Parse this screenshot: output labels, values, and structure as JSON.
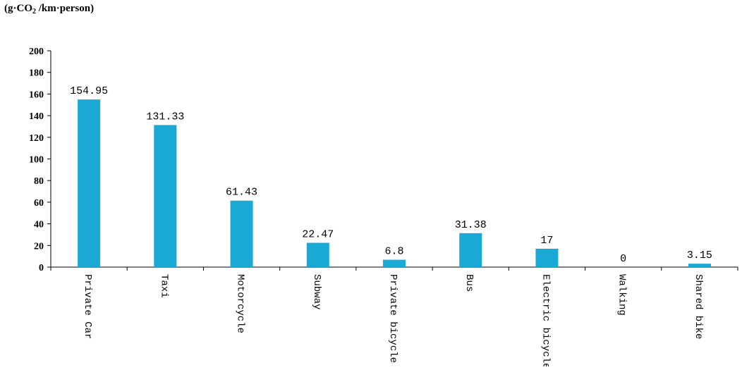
{
  "chart_data": {
    "type": "bar",
    "ylabel": {
      "prefix": "(g·CO",
      "sub": "2",
      "suffix": " /km·person)"
    },
    "categories": [
      "Private Car",
      "Taxi",
      "Motorcycle",
      "Subway",
      "Private bicycle",
      "Bus",
      "Electric bicycle",
      "Walking",
      "Shared bike"
    ],
    "values": [
      154.95,
      131.33,
      61.43,
      22.47,
      6.8,
      31.38,
      17,
      0,
      3.15
    ],
    "value_labels": [
      "154.95",
      "131.33",
      "61.43",
      "22.47",
      "6.8",
      "31.38",
      "17",
      "0",
      "3.15"
    ],
    "ylim": [
      0,
      200
    ],
    "yticks": [
      "0",
      "20",
      "40",
      "60",
      "80",
      "100",
      "120",
      "140",
      "160",
      "180",
      "200"
    ],
    "grid": false,
    "bar_color": "#1AA9D4"
  }
}
